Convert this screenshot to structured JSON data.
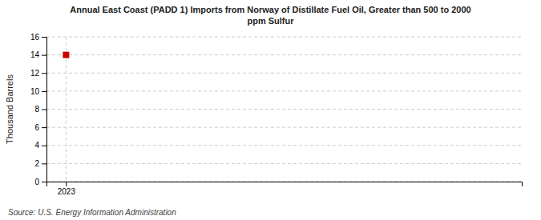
{
  "chart_data": {
    "type": "scatter",
    "title": "Annual East Coast (PADD 1) Imports from Norway of Distillate Fuel Oil, Greater than 500 to 2000\nppm Sulfur",
    "y_label": "Thousand Barrels",
    "annotations": [
      "Source: U.S. Energy Information Administration"
    ],
    "x": [
      2023
    ],
    "values": [
      14
    ],
    "color": "#cc0000",
    "marker": "square",
    "xlim": [
      2022.7,
      2030
    ],
    "xticks": [
      2023
    ],
    "ylim": [
      0,
      16
    ],
    "yticks": [
      0,
      2,
      4,
      6,
      8,
      10,
      12,
      14,
      16
    ],
    "grid": true
  }
}
